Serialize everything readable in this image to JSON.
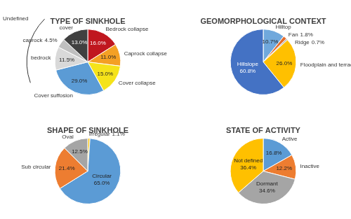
{
  "chart_data": [
    {
      "type": "pie",
      "title": "TYPE OF SINKHOLE",
      "categories": [
        "Bedrock collapse",
        "Caprock collapse",
        "Cover collapse",
        "Cover suffosion",
        "bedrock",
        "caprock",
        "cover"
      ],
      "values": [
        16.0,
        11.0,
        15.0,
        29.0,
        11.5,
        4.5,
        13.0
      ],
      "value_labels": [
        "16.0%",
        "11.0%",
        "15.0%",
        "29.0%",
        "11.5%",
        "4.5%",
        "13.0%"
      ],
      "colors": [
        "#c0171f",
        "#f4a024",
        "#f5e31a",
        "#5b9bd5",
        "#d9d9d9",
        "#bfbfbf",
        "#404040"
      ],
      "data_labels": true,
      "annotations": [
        "Undefined"
      ]
    },
    {
      "type": "pie",
      "title": "GEOMORPHOLOGICAL CONTEXT",
      "categories": [
        "Hilltop",
        "Fan",
        "Ridge",
        "Floodplain and terraces",
        "Hillslope"
      ],
      "values": [
        10.7,
        1.8,
        0.7,
        26.0,
        60.8
      ],
      "value_labels": [
        "10.7%",
        "1.8%",
        "0.7%",
        "26.0%",
        "60.8%"
      ],
      "colors": [
        "#70a8dc",
        "#e36c2c",
        "#a5a5a5",
        "#ffc000",
        "#4472c4"
      ],
      "data_labels": true
    },
    {
      "type": "pie",
      "title": "SHAPE OF SINKHOLE",
      "categories": [
        "Irregular",
        "Circular",
        "Sub circular",
        "Oval"
      ],
      "values": [
        1.1,
        65.0,
        21.4,
        12.5
      ],
      "value_labels": [
        "1.1%",
        "65.0%",
        "21.4%",
        "12.5%"
      ],
      "colors": [
        "#ffc000",
        "#5b9bd5",
        "#ed7d31",
        "#a5a5a5"
      ],
      "data_labels": true
    },
    {
      "type": "pie",
      "title": "STATE OF ACTIVITY",
      "categories": [
        "Active",
        "Inactive",
        "Dormant",
        "Not defined"
      ],
      "values": [
        16.8,
        12.2,
        34.6,
        36.4
      ],
      "value_labels": [
        "16.8%",
        "12.2%",
        "34.6%",
        "36.4%"
      ],
      "colors": [
        "#5b9bd5",
        "#ed7d31",
        "#a5a5a5",
        "#ffc000"
      ],
      "data_labels": true
    }
  ]
}
